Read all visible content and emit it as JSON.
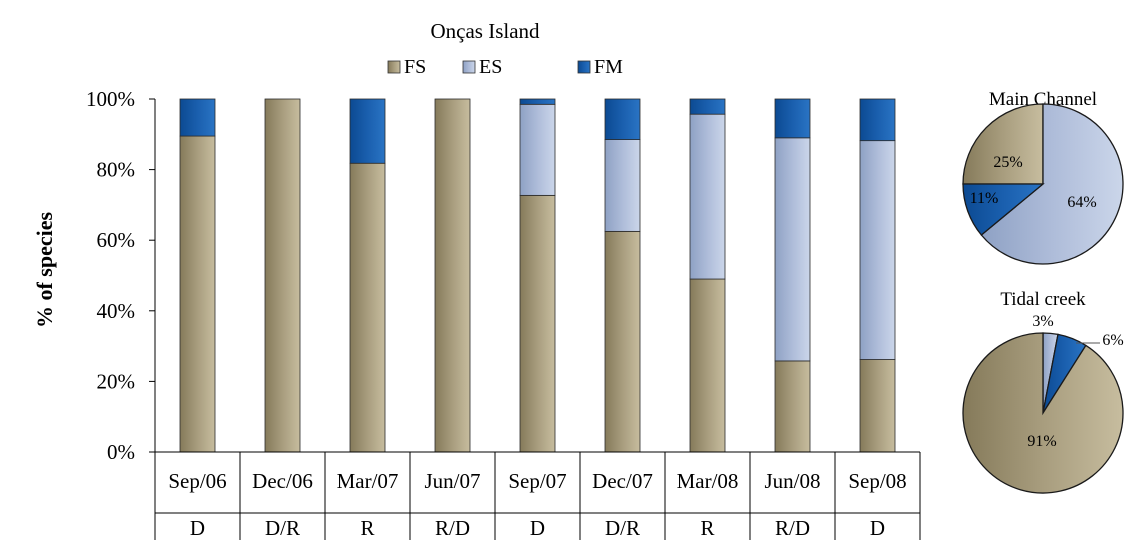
{
  "chart_data": [
    {
      "type": "bar",
      "stacked": true,
      "percent": true,
      "title": "Onças Island",
      "ylabel": "% of species",
      "xlabel": "",
      "ylim": [
        0,
        100
      ],
      "yticks": [
        "0%",
        "20%",
        "40%",
        "60%",
        "80%",
        "100%"
      ],
      "grid": false,
      "legend_position": "top",
      "categories": [
        "Sep/06",
        "Dec/06",
        "Mar/07",
        "Jun/07",
        "Sep/07",
        "Dec/07",
        "Mar/08",
        "Jun/08",
        "Sep/08"
      ],
      "category_row2": [
        "D",
        "D/R",
        "R",
        "R/D",
        "D",
        "D/R",
        "R",
        "R/D",
        "D"
      ],
      "series": [
        {
          "name": "FS",
          "color": "#9d9271",
          "values": [
            89.5,
            100,
            81.8,
            100,
            72.7,
            62.5,
            49,
            25.8,
            26.2
          ]
        },
        {
          "name": "ES",
          "color": "#a8b8d8",
          "values": [
            0,
            0,
            0,
            0,
            25.8,
            26,
            46.7,
            63.2,
            62
          ]
        },
        {
          "name": "FM",
          "color": "#1558a6",
          "values": [
            10.5,
            0,
            18.2,
            0,
            1.5,
            11.5,
            4.3,
            11,
            11.8
          ]
        }
      ]
    },
    {
      "type": "pie",
      "title": "Main Channel",
      "slices": [
        {
          "name": "FS",
          "value": 25,
          "label": "25%",
          "color": "#9d9271"
        },
        {
          "name": "ES",
          "value": 64,
          "label": "64%",
          "color": "#a8b8d8"
        },
        {
          "name": "FM",
          "value": 11,
          "label": "11%",
          "color": "#1558a6"
        }
      ]
    },
    {
      "type": "pie",
      "title": "Tidal creek",
      "slices": [
        {
          "name": "ES",
          "value": 3,
          "label": "3%",
          "color": "#a8b8d8"
        },
        {
          "name": "FM",
          "value": 6,
          "label": "6%",
          "color": "#1558a6"
        },
        {
          "name": "FS",
          "value": 91,
          "label": "91%",
          "color": "#9d9271"
        }
      ]
    }
  ]
}
